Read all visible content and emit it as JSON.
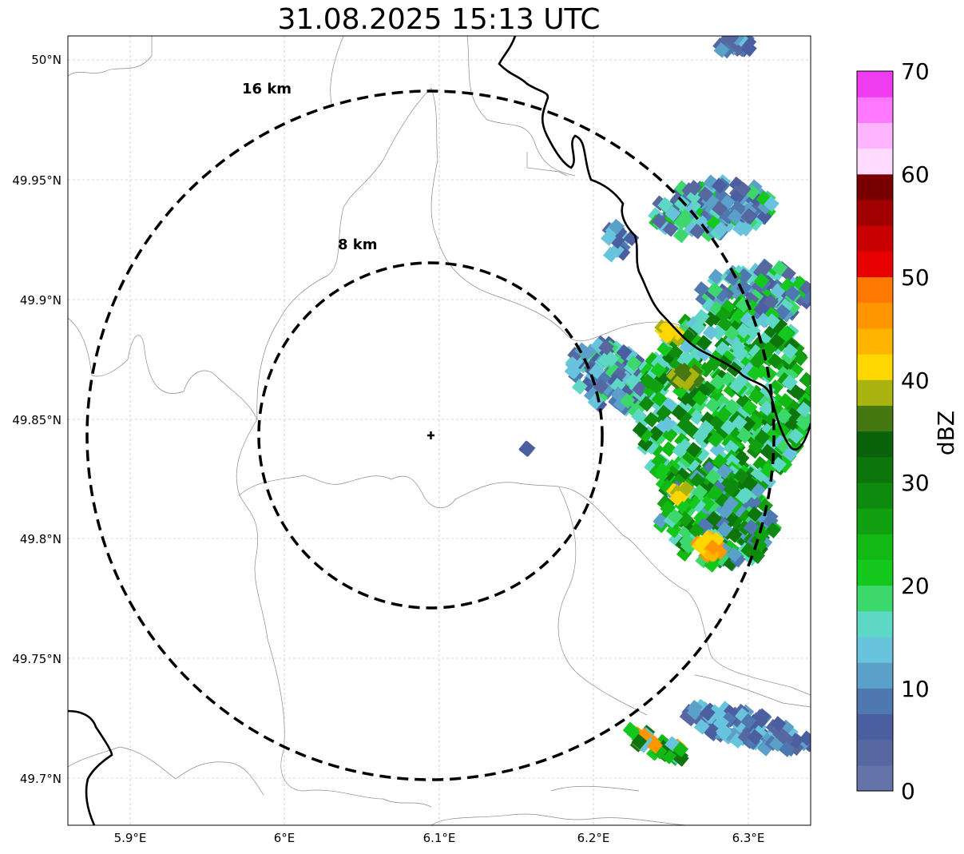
{
  "title": "31.08.2025 15:13 UTC",
  "map": {
    "lat_ticks": [
      "50°N",
      "49.95°N",
      "49.9°N",
      "49.85°N",
      "49.8°N",
      "49.75°N",
      "49.7°N"
    ],
    "lon_ticks": [
      "5.9°E",
      "6°E",
      "6.1°E",
      "6.2°E",
      "6.3°E"
    ],
    "lon_range": [
      5.86,
      6.34
    ],
    "lat_range": [
      49.68,
      50.01
    ],
    "radar_site": {
      "lon": 6.095,
      "lat": 49.843
    },
    "rings": [
      {
        "label": "8 km",
        "radius_km": 8
      },
      {
        "label": "16 km",
        "radius_km": 16
      }
    ],
    "gridlines": true
  },
  "colorbar": {
    "label": "dBZ",
    "ticks": [
      "0",
      "10",
      "20",
      "30",
      "40",
      "50",
      "60",
      "70"
    ],
    "range": [
      0,
      70
    ],
    "colors": [
      "#6474a8",
      "#5767a0",
      "#4a5ea0",
      "#4f78b0",
      "#5aa0c8",
      "#68c4dc",
      "#5ed8c4",
      "#3cd86c",
      "#14c81e",
      "#12b814",
      "#10a010",
      "#0e8a0e",
      "#0c760c",
      "#0a620a",
      "#467812",
      "#aab410",
      "#ffd700",
      "#ffb400",
      "#ff9600",
      "#ff7800",
      "#e60000",
      "#c80000",
      "#a00000",
      "#780000",
      "#ffdcff",
      "#ffb4ff",
      "#ff78ff",
      "#f03cf0"
    ]
  }
}
